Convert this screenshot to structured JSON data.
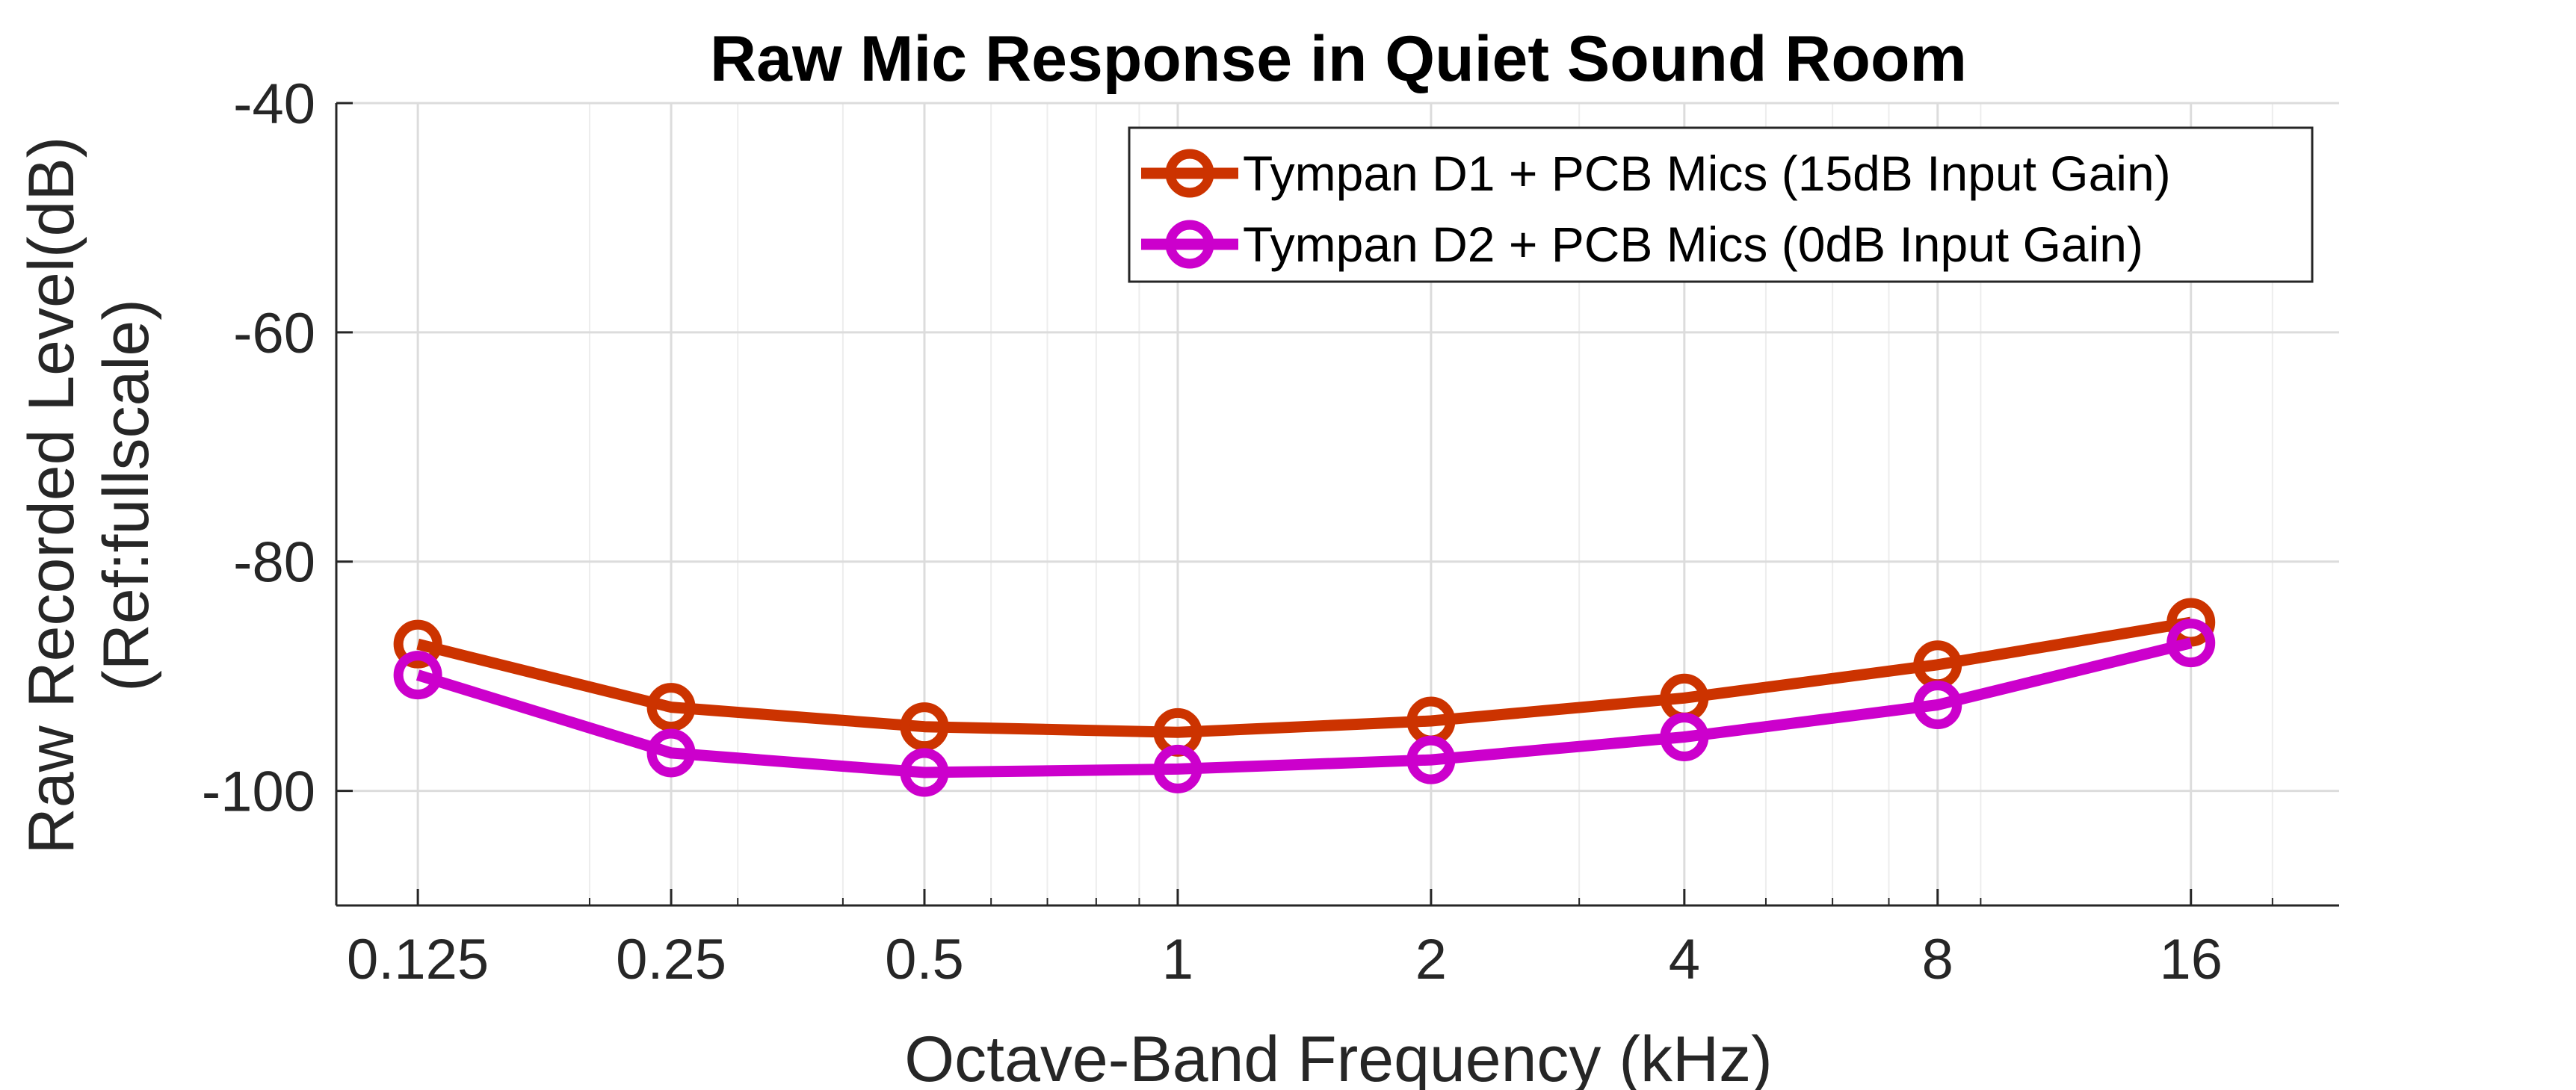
{
  "chart_data": {
    "type": "line",
    "title": "Raw Mic Response in Quiet Sound Room",
    "xlabel": "Octave-Band Frequency (kHz)",
    "ylabel_lines": [
      "Raw Recorded Level(dB)",
      "(Ref:fullscale)"
    ],
    "x_scale": "log",
    "xlim": [
      0.1,
      24
    ],
    "ylim": [
      -110,
      -40
    ],
    "x_ticks": [
      0.125,
      0.25,
      0.5,
      1,
      2,
      4,
      8,
      16
    ],
    "x_tick_labels": [
      "0.125",
      "0.25",
      "0.5",
      "1",
      "2",
      "4",
      "8",
      "16"
    ],
    "y_ticks": [
      -100,
      -80,
      -60,
      -40
    ],
    "y_tick_labels": [
      "-100",
      "-80",
      "-60",
      "-40"
    ],
    "grid": true,
    "legend_position": "top-right",
    "x": [
      0.125,
      0.25,
      0.5,
      1,
      2,
      4,
      8,
      16
    ],
    "series": [
      {
        "name": "Tympan D1 + PCB Mics (15dB Input Gain)",
        "color": "#cc3300",
        "values": [
          -87.2,
          -92.7,
          -94.4,
          -94.9,
          -93.9,
          -91.9,
          -89.0,
          -85.3
        ]
      },
      {
        "name": "Tympan D2 + PCB Mics (0dB Input Gain)",
        "color": "#cc00cc",
        "values": [
          -89.9,
          -96.7,
          -98.4,
          -98.1,
          -97.3,
          -95.3,
          -92.5,
          -87.1
        ]
      }
    ]
  }
}
